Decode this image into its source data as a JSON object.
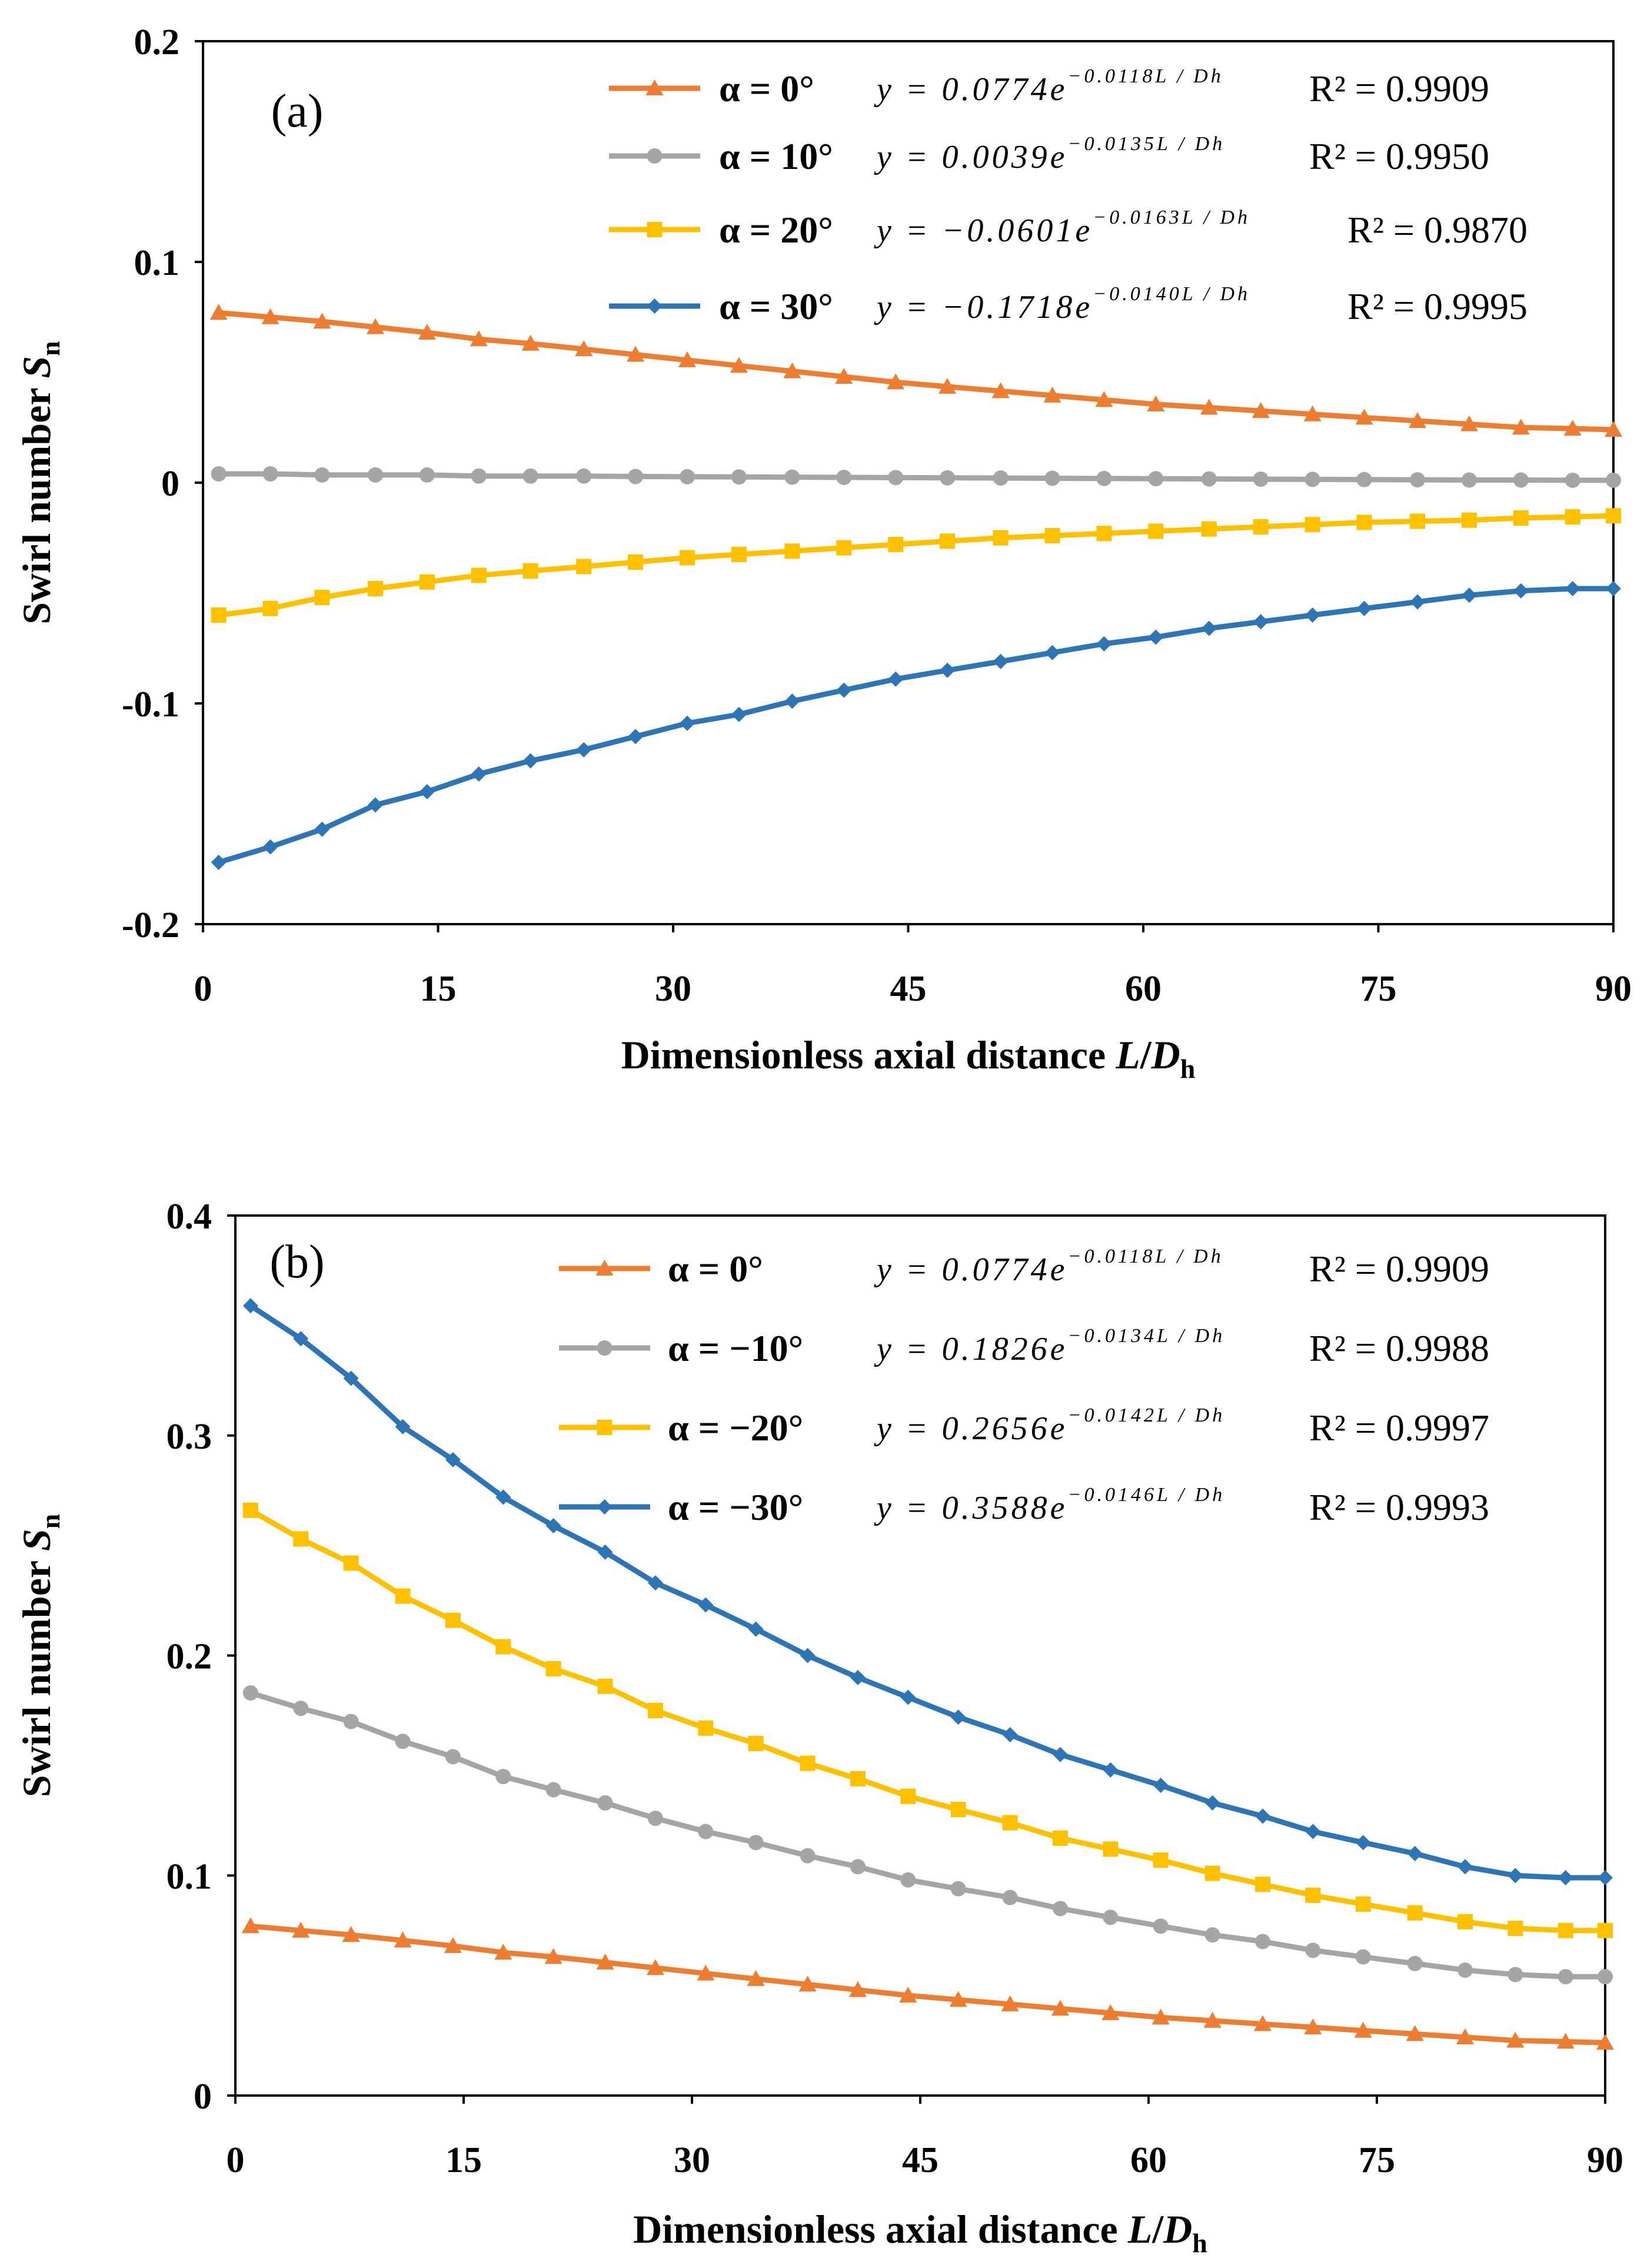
{
  "figure": {
    "panel_a_label": "(a)",
    "panel_b_label": "(b)"
  },
  "chart_data": [
    {
      "type": "line",
      "panel": "(a)",
      "xlabel": "Dimensionless axial distance L/Dh",
      "ylabel": "Swirl number Sn",
      "xlabel_parts": {
        "main": "Dimensionless axial distance ",
        "L": "L",
        "slash": "/",
        "D": "D",
        "sub": "h"
      },
      "ylabel_parts": {
        "main": "Swirl number ",
        "S": "S",
        "sub": "n"
      },
      "xlim": [
        0,
        90
      ],
      "ylim": [
        -0.2,
        0.2
      ],
      "x_ticks": [
        "0",
        "15",
        "30",
        "45",
        "60",
        "75",
        "90"
      ],
      "y_ticks": [
        "-0.2",
        "-0.1",
        "0",
        "0.1",
        "0.2"
      ],
      "grid": false,
      "legend_position": "top-right",
      "x": [
        1,
        4.3,
        7.6,
        11,
        14.3,
        17.6,
        20.9,
        24.3,
        27.6,
        30.9,
        34.2,
        37.6,
        40.9,
        44.2,
        47.5,
        50.9,
        54.2,
        57.5,
        60.8,
        64.2,
        67.5,
        70.8,
        74.1,
        77.5,
        80.8,
        84.1,
        87.4,
        90
      ],
      "series": [
        {
          "name": "α = 0°",
          "marker": "triangle",
          "color": "#ED7D31",
          "equation": "y = 0.0774e",
          "exponent": "−0.0118L / Dh",
          "r2": "R² = 0.9909",
          "values": [
            0.077,
            0.075,
            0.073,
            0.0705,
            0.068,
            0.065,
            0.063,
            0.0605,
            0.058,
            0.0555,
            0.053,
            0.0505,
            0.048,
            0.0455,
            0.0435,
            0.0415,
            0.0395,
            0.0375,
            0.0355,
            0.034,
            0.0325,
            0.031,
            0.0295,
            0.028,
            0.0265,
            0.025,
            0.0245,
            0.024
          ]
        },
        {
          "name": "α = 10°",
          "marker": "circle",
          "color": "#A5A5A5",
          "equation": "y = 0.0039e",
          "exponent": "−0.0135L / Dh",
          "r2": "R² = 0.9950",
          "values": [
            0.004,
            0.004,
            0.0035,
            0.0035,
            0.0035,
            0.003,
            0.003,
            0.003,
            0.0028,
            0.0027,
            0.0026,
            0.0025,
            0.0024,
            0.0023,
            0.0022,
            0.0021,
            0.002,
            0.0019,
            0.0018,
            0.0017,
            0.0016,
            0.0015,
            0.0014,
            0.0013,
            0.0012,
            0.0012,
            0.0011,
            0.0011
          ]
        },
        {
          "name": "α = 20°",
          "marker": "square",
          "color": "#FFC000",
          "equation": "y = −0.0601e",
          "exponent": "−0.0163L / Dh",
          "r2": "R² = 0.9870",
          "values": [
            -0.06,
            -0.057,
            -0.052,
            -0.048,
            -0.045,
            -0.042,
            -0.04,
            -0.038,
            -0.036,
            -0.034,
            -0.0325,
            -0.031,
            -0.0295,
            -0.028,
            -0.0265,
            -0.025,
            -0.024,
            -0.023,
            -0.022,
            -0.021,
            -0.02,
            -0.019,
            -0.018,
            -0.0175,
            -0.017,
            -0.016,
            -0.0155,
            -0.015
          ]
        },
        {
          "name": "α = 30°",
          "marker": "diamond",
          "color": "#2E75B6",
          "equation": "y = −0.1718e",
          "exponent": "−0.0140L / Dh",
          "r2": "R² = 0.9995",
          "values": [
            -0.172,
            -0.165,
            -0.157,
            -0.146,
            -0.14,
            -0.132,
            -0.126,
            -0.121,
            -0.115,
            -0.109,
            -0.105,
            -0.099,
            -0.094,
            -0.089,
            -0.085,
            -0.081,
            -0.077,
            -0.073,
            -0.07,
            -0.066,
            -0.063,
            -0.06,
            -0.057,
            -0.054,
            -0.051,
            -0.049,
            -0.048,
            -0.048
          ]
        }
      ]
    },
    {
      "type": "line",
      "panel": "(b)",
      "xlabel": "Dimensionless axial distance L/Dh",
      "ylabel": "Swirl number Sn",
      "xlabel_parts": {
        "main": "Dimensionless axial distance ",
        "L": "L",
        "slash": "/",
        "D": "D",
        "sub": "h"
      },
      "ylabel_parts": {
        "main": "Swirl number ",
        "S": "S",
        "sub": "n"
      },
      "xlim": [
        0,
        90
      ],
      "ylim": [
        0,
        0.4
      ],
      "x_ticks": [
        "0",
        "15",
        "30",
        "45",
        "60",
        "75",
        "90"
      ],
      "y_ticks": [
        "0",
        "0.1",
        "0.2",
        "0.3",
        "0.4"
      ],
      "grid": false,
      "legend_position": "top-right",
      "x": [
        1,
        4.3,
        7.6,
        11,
        14.3,
        17.6,
        20.9,
        24.3,
        27.6,
        30.9,
        34.2,
        37.6,
        40.9,
        44.2,
        47.5,
        50.9,
        54.2,
        57.5,
        60.8,
        64.2,
        67.5,
        70.8,
        74.1,
        77.5,
        80.8,
        84.1,
        87.4,
        90
      ],
      "series": [
        {
          "name": "α = 0°",
          "marker": "triangle",
          "color": "#ED7D31",
          "equation": "y = 0.0774e",
          "exponent": "−0.0118L / Dh",
          "r2": "R² = 0.9909",
          "values": [
            0.077,
            0.075,
            0.073,
            0.0705,
            0.068,
            0.065,
            0.063,
            0.0605,
            0.058,
            0.0555,
            0.053,
            0.0505,
            0.048,
            0.0455,
            0.0435,
            0.0415,
            0.0395,
            0.0375,
            0.0355,
            0.034,
            0.0325,
            0.031,
            0.0295,
            0.028,
            0.0265,
            0.025,
            0.0245,
            0.024
          ]
        },
        {
          "name": "α = −10°",
          "marker": "circle",
          "color": "#A5A5A5",
          "equation": "y = 0.1826e",
          "exponent": "−0.0134L / Dh",
          "r2": "R² = 0.9988",
          "values": [
            0.183,
            0.176,
            0.17,
            0.161,
            0.154,
            0.145,
            0.139,
            0.133,
            0.126,
            0.12,
            0.115,
            0.109,
            0.104,
            0.098,
            0.094,
            0.09,
            0.085,
            0.081,
            0.077,
            0.073,
            0.07,
            0.066,
            0.063,
            0.06,
            0.057,
            0.055,
            0.054,
            0.054
          ]
        },
        {
          "name": "α = −20°",
          "marker": "square",
          "color": "#FFC000",
          "equation": "y = 0.2656e",
          "exponent": "−0.0142L / Dh",
          "r2": "R² = 0.9997",
          "values": [
            0.266,
            0.253,
            0.242,
            0.227,
            0.216,
            0.204,
            0.194,
            0.186,
            0.175,
            0.167,
            0.16,
            0.151,
            0.144,
            0.136,
            0.13,
            0.124,
            0.117,
            0.112,
            0.107,
            0.101,
            0.096,
            0.091,
            0.087,
            0.083,
            0.079,
            0.076,
            0.075,
            0.075
          ]
        },
        {
          "name": "α = −30°",
          "marker": "diamond",
          "color": "#2E75B6",
          "equation": "y = 0.3588e",
          "exponent": "−0.0146L / Dh",
          "r2": "R² = 0.9993",
          "values": [
            0.359,
            0.344,
            0.326,
            0.304,
            0.289,
            0.272,
            0.259,
            0.247,
            0.233,
            0.223,
            0.212,
            0.2,
            0.19,
            0.181,
            0.172,
            0.164,
            0.155,
            0.148,
            0.141,
            0.133,
            0.127,
            0.12,
            0.115,
            0.11,
            0.104,
            0.1,
            0.099,
            0.099
          ]
        }
      ]
    }
  ]
}
